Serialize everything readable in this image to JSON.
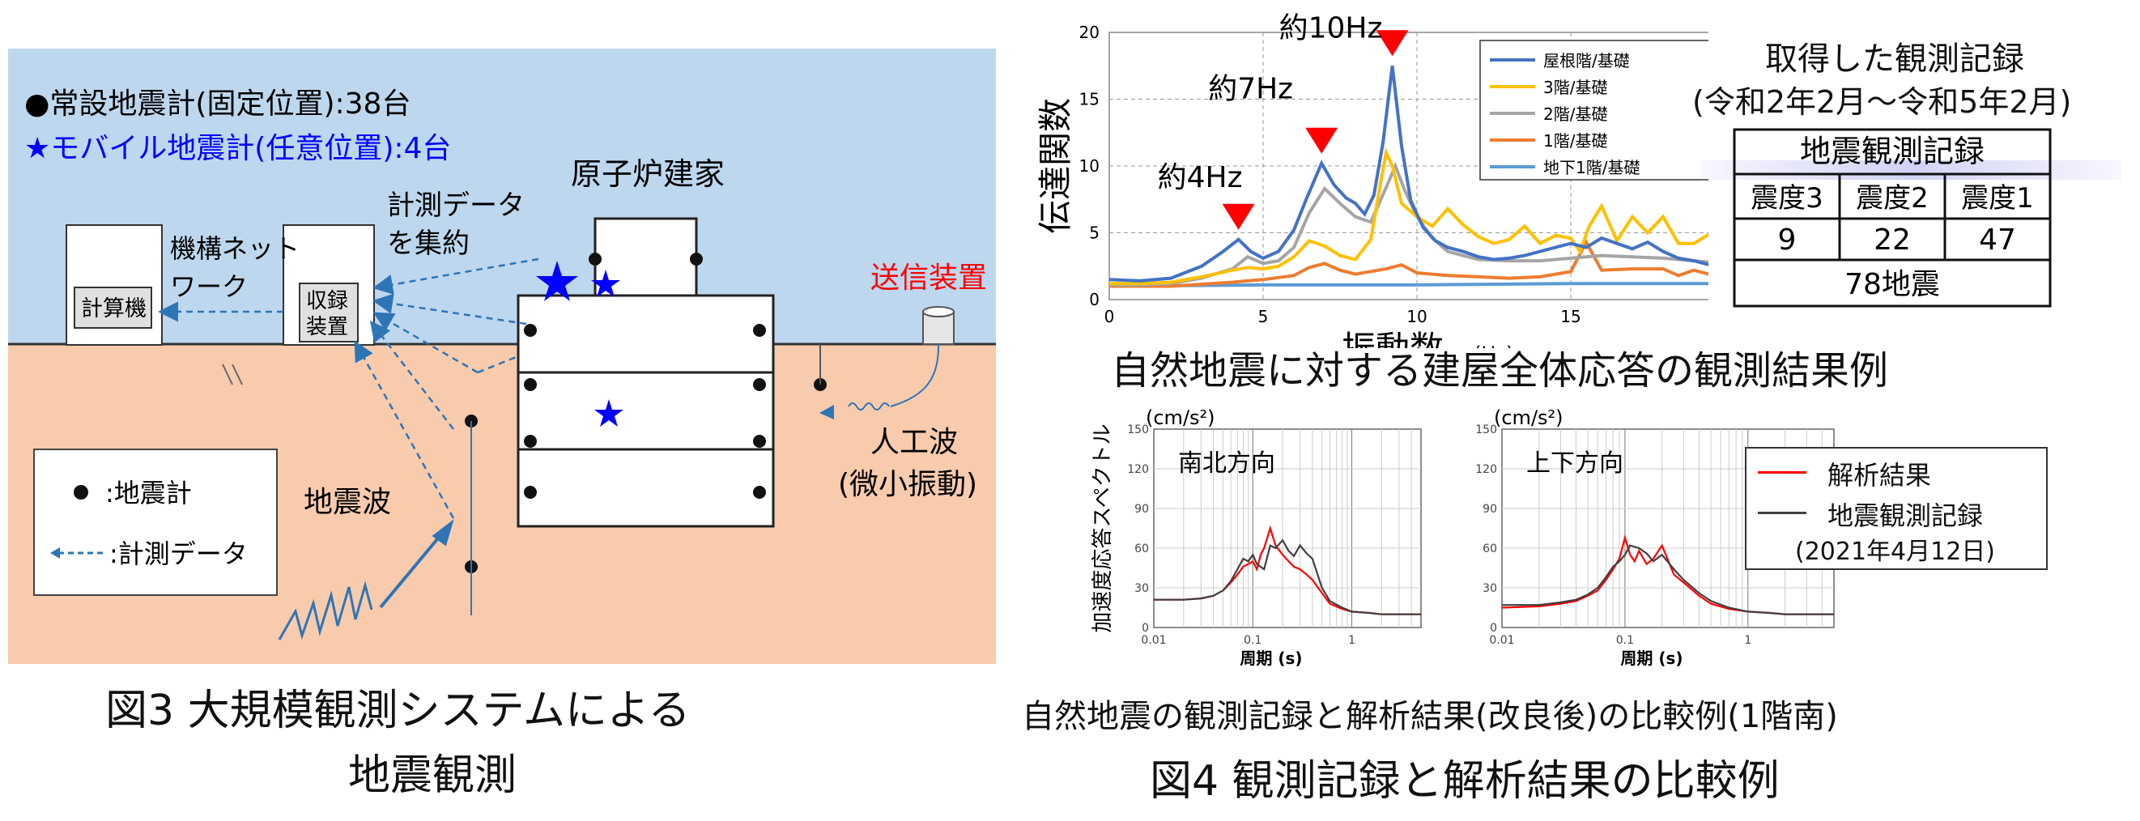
{
  "fig3": {
    "legend_fixed": "●常設地震計(固定位置):38台",
    "legend_mobile": "★モバイル地震計(任意位置):4台",
    "reactor_building": "原子炉建家",
    "measure_data_1": "計測データ",
    "measure_data_2": "を集約",
    "network_1": "機構ネット",
    "network_2": "ワーク",
    "computer": "計算機",
    "recorder_1": "収録",
    "recorder_2": "装置",
    "transmitter": "送信装置",
    "artificial_1": "人工波",
    "artificial_2": "(微小振動)",
    "seismic_wave": "地震波",
    "key_seismometer": ":地震計",
    "key_data": ":計測データ",
    "caption_1": "図3 大規模観測システムによる",
    "caption_2": "地震観測",
    "colors": {
      "sky": "#bdd7ee",
      "ground": "#f8cbad",
      "accent_red": "#ff0000",
      "star": "#0000ff",
      "arrow": "#2e75b6"
    }
  },
  "fig4": {
    "caption": "図4 観測記録と解析結果の比較例",
    "records_title_1": "取得した観測記録",
    "records_title_2": "(令和2年2月～令和5年2月)",
    "table": {
      "header": "地震観測記録",
      "columns": [
        "震度3",
        "震度2",
        "震度1"
      ],
      "values": [
        "9",
        "22",
        "47"
      ],
      "total": "78地震"
    },
    "subtitle_1": "自然地震に対する建屋全体応答の観測結果例",
    "subtitle_2": "自然地震の観測記録と解析結果(改良後)の比較例(1階南)"
  },
  "chart_data": [
    {
      "type": "line",
      "ylabel": "伝達関数",
      "xlabel": "振動数",
      "xunit": "(Hz)",
      "xlim": [
        0,
        20
      ],
      "ylim": [
        0,
        20
      ],
      "xticks": [
        "0",
        "5",
        "10",
        "15",
        "20"
      ],
      "yticks": [
        "0",
        "5",
        "10",
        "15",
        "20"
      ],
      "grid": true,
      "annotation_direction": "南北方向",
      "peaks": [
        {
          "label": "約4Hz",
          "x": 4.2,
          "y": 4.5
        },
        {
          "label": "約7Hz",
          "x": 6.9,
          "y": 10.2
        },
        {
          "label": "約10Hz",
          "x": 9.2,
          "y": 17.5
        }
      ],
      "series": [
        {
          "name": "屋根階/基礎",
          "color": "#4472c4",
          "x": [
            0,
            1,
            2,
            3,
            3.7,
            4.2,
            4.6,
            5,
            5.5,
            6,
            6.4,
            6.9,
            7.3,
            7.7,
            8,
            8.3,
            8.6,
            8.9,
            9.2,
            9.5,
            9.8,
            10.2,
            10.6,
            11,
            11.5,
            12,
            12.5,
            13,
            13.5,
            14,
            14.5,
            15,
            15.5,
            16,
            16.5,
            17,
            17.5,
            18,
            18.5,
            19,
            19.5,
            20
          ],
          "y": [
            1.5,
            1.4,
            1.6,
            2.5,
            3.6,
            4.5,
            3.6,
            3.1,
            3.6,
            5.2,
            7.5,
            10.2,
            8.6,
            7.6,
            7.2,
            6.4,
            7.8,
            11.8,
            17.5,
            11.5,
            7.4,
            5.4,
            4.4,
            3.9,
            3.6,
            3.2,
            3,
            3.1,
            3.3,
            3.6,
            3.9,
            4.2,
            3.9,
            4.6,
            4.2,
            3.8,
            4.3,
            3.6,
            3.1,
            2.9,
            2.6,
            2.5
          ]
        },
        {
          "name": "3階/基礎",
          "color": "#ffc000",
          "x": [
            0,
            1,
            2,
            3,
            4,
            4.5,
            5,
            5.5,
            6,
            6.5,
            7,
            7.5,
            8,
            8.5,
            8.8,
            9,
            9.2,
            9.5,
            10,
            10.5,
            11,
            11.5,
            12,
            12.5,
            13,
            13.5,
            14,
            14.5,
            15,
            15.3,
            15.6,
            16,
            16.5,
            17,
            17.5,
            18,
            18.5,
            19,
            19.5,
            20
          ],
          "y": [
            1.2,
            1.2,
            1.3,
            1.7,
            2.2,
            2.4,
            2.3,
            2.5,
            3.2,
            4.4,
            4,
            3.3,
            3,
            4.5,
            8.5,
            11,
            10,
            7.2,
            6.2,
            5.5,
            6.8,
            5.6,
            4.7,
            4.2,
            4.5,
            5.5,
            4.2,
            4.8,
            4.6,
            3.6,
            5.5,
            7,
            4.4,
            6.2,
            5,
            6.2,
            4.2,
            4.2,
            4.9,
            3.8
          ]
        },
        {
          "name": "2階/基礎",
          "color": "#a5a5a5",
          "x": [
            0,
            1,
            2,
            3,
            4,
            4.5,
            5,
            5.5,
            6,
            6.5,
            7,
            7.5,
            8,
            8.5,
            9,
            9.3,
            9.6,
            10,
            10.5,
            11,
            11.5,
            12,
            13,
            14,
            15,
            16,
            17,
            18,
            19,
            20
          ],
          "y": [
            1.1,
            1.1,
            1.2,
            1.6,
            2.3,
            3.2,
            2.7,
            2.9,
            3.9,
            6.5,
            8.3,
            7.2,
            6.2,
            5.8,
            8.4,
            10,
            8.2,
            6.2,
            4.6,
            3.6,
            3.3,
            3,
            2.9,
            2.9,
            3.1,
            3.3,
            3.2,
            3.1,
            2.9,
            2.7
          ]
        },
        {
          "name": "1階/基礎",
          "color": "#ed7d31",
          "x": [
            0,
            2,
            4,
            5,
            6,
            6.5,
            7,
            7.5,
            8,
            9,
            9.5,
            10,
            11,
            12,
            13,
            14,
            15,
            15.5,
            16,
            17,
            18,
            18.5,
            19,
            20
          ],
          "y": [
            1,
            1,
            1.3,
            1.5,
            1.8,
            2.4,
            2.7,
            2.2,
            1.9,
            2.3,
            2.6,
            2,
            1.8,
            1.7,
            1.6,
            1.7,
            2.1,
            4.3,
            2.2,
            2.3,
            2.3,
            1.8,
            2.2,
            1.6
          ]
        },
        {
          "name": "地下1階/基礎",
          "color": "#5b9bd5",
          "x": [
            0,
            5,
            10,
            15,
            20
          ],
          "y": [
            1,
            1.1,
            1.1,
            1.2,
            1.2
          ]
        }
      ]
    },
    {
      "type": "line",
      "title": "南北方向",
      "ylabel": "加速度応答スペクトル",
      "yunit": "(cm/s²)",
      "xlabel": "周期 (s)",
      "xscale": "log",
      "xlim": [
        0.01,
        5
      ],
      "ylim": [
        0,
        150
      ],
      "xticks": [
        "0.01",
        "0.1",
        "1"
      ],
      "yticks": [
        "0",
        "30",
        "60",
        "90",
        "120",
        "150"
      ],
      "grid": true,
      "series": [
        {
          "name": "解析結果",
          "color": "#ff0000",
          "x": [
            0.01,
            0.02,
            0.03,
            0.04,
            0.05,
            0.06,
            0.07,
            0.08,
            0.09,
            0.1,
            0.11,
            0.12,
            0.13,
            0.15,
            0.17,
            0.2,
            0.23,
            0.26,
            0.3,
            0.35,
            0.4,
            0.5,
            0.6,
            0.8,
            1,
            1.5,
            2,
            3,
            5
          ],
          "y": [
            21,
            21,
            22,
            24,
            28,
            34,
            40,
            46,
            48,
            50,
            44,
            55,
            60,
            75,
            62,
            55,
            50,
            46,
            44,
            40,
            36,
            26,
            18,
            14,
            12,
            11,
            10,
            10,
            10
          ]
        },
        {
          "name": "地震観測記録",
          "color": "#404040",
          "x": [
            0.01,
            0.02,
            0.03,
            0.04,
            0.05,
            0.06,
            0.07,
            0.08,
            0.09,
            0.1,
            0.11,
            0.13,
            0.15,
            0.17,
            0.2,
            0.23,
            0.26,
            0.3,
            0.35,
            0.4,
            0.5,
            0.6,
            0.8,
            1,
            1.5,
            2,
            3,
            5
          ],
          "y": [
            21,
            21,
            22,
            24,
            28,
            35,
            44,
            52,
            50,
            55,
            48,
            44,
            62,
            60,
            66,
            58,
            54,
            62,
            56,
            52,
            30,
            20,
            15,
            12,
            11,
            10,
            10,
            10
          ]
        }
      ]
    },
    {
      "type": "line",
      "title": "上下方向",
      "yunit": "(cm/s²)",
      "xlabel": "周期 (s)",
      "xscale": "log",
      "xlim": [
        0.01,
        5
      ],
      "ylim": [
        0,
        150
      ],
      "xticks": [
        "0.01",
        "0.1",
        "1"
      ],
      "yticks": [
        "0",
        "30",
        "60",
        "90",
        "120",
        "150"
      ],
      "grid": true,
      "series": [
        {
          "name": "解析結果",
          "color": "#ff0000",
          "x": [
            0.01,
            0.02,
            0.03,
            0.04,
            0.05,
            0.06,
            0.07,
            0.08,
            0.09,
            0.1,
            0.11,
            0.12,
            0.13,
            0.15,
            0.17,
            0.2,
            0.25,
            0.3,
            0.4,
            0.5,
            0.7,
            1,
            1.5,
            2,
            3,
            5
          ],
          "y": [
            15,
            16,
            18,
            20,
            24,
            28,
            36,
            44,
            52,
            68,
            55,
            50,
            58,
            48,
            52,
            62,
            40,
            34,
            24,
            18,
            14,
            12,
            11,
            10,
            10,
            10
          ]
        },
        {
          "name": "地震観測記録",
          "color": "#404040",
          "x": [
            0.01,
            0.02,
            0.03,
            0.04,
            0.05,
            0.06,
            0.07,
            0.08,
            0.09,
            0.1,
            0.11,
            0.13,
            0.15,
            0.17,
            0.2,
            0.25,
            0.3,
            0.4,
            0.5,
            0.7,
            1,
            1.5,
            2,
            3,
            5
          ],
          "y": [
            17,
            17,
            19,
            21,
            25,
            30,
            38,
            46,
            50,
            55,
            62,
            60,
            56,
            50,
            55,
            44,
            36,
            26,
            20,
            15,
            12,
            11,
            10,
            10,
            10
          ]
        }
      ],
      "legend_note": "(2021年4月12日)"
    }
  ]
}
